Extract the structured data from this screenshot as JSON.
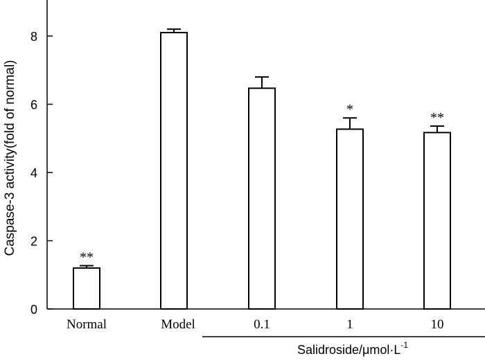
{
  "chart_data": {
    "type": "bar",
    "title": "",
    "ylabel": "Caspase-3 activity(fold of normal)",
    "xlabel": "",
    "ylim": [
      0,
      9
    ],
    "yticks": [
      0,
      2,
      4,
      6,
      8
    ],
    "yticks_labels": [
      "0",
      "2",
      "4",
      "6",
      "8"
    ],
    "categories": [
      "Normal",
      "Model",
      "0.1",
      "1",
      "10"
    ],
    "values": [
      1.2,
      8.1,
      6.47,
      5.27,
      5.17
    ],
    "errors": [
      0.07,
      0.1,
      0.33,
      0.33,
      0.19
    ],
    "significance": [
      "**",
      "",
      "",
      "*",
      "**"
    ],
    "group_label": {
      "text": "Salidroside/μmol·L",
      "superscript": "-1",
      "groups": [
        "0.1",
        "1",
        "10"
      ]
    }
  }
}
